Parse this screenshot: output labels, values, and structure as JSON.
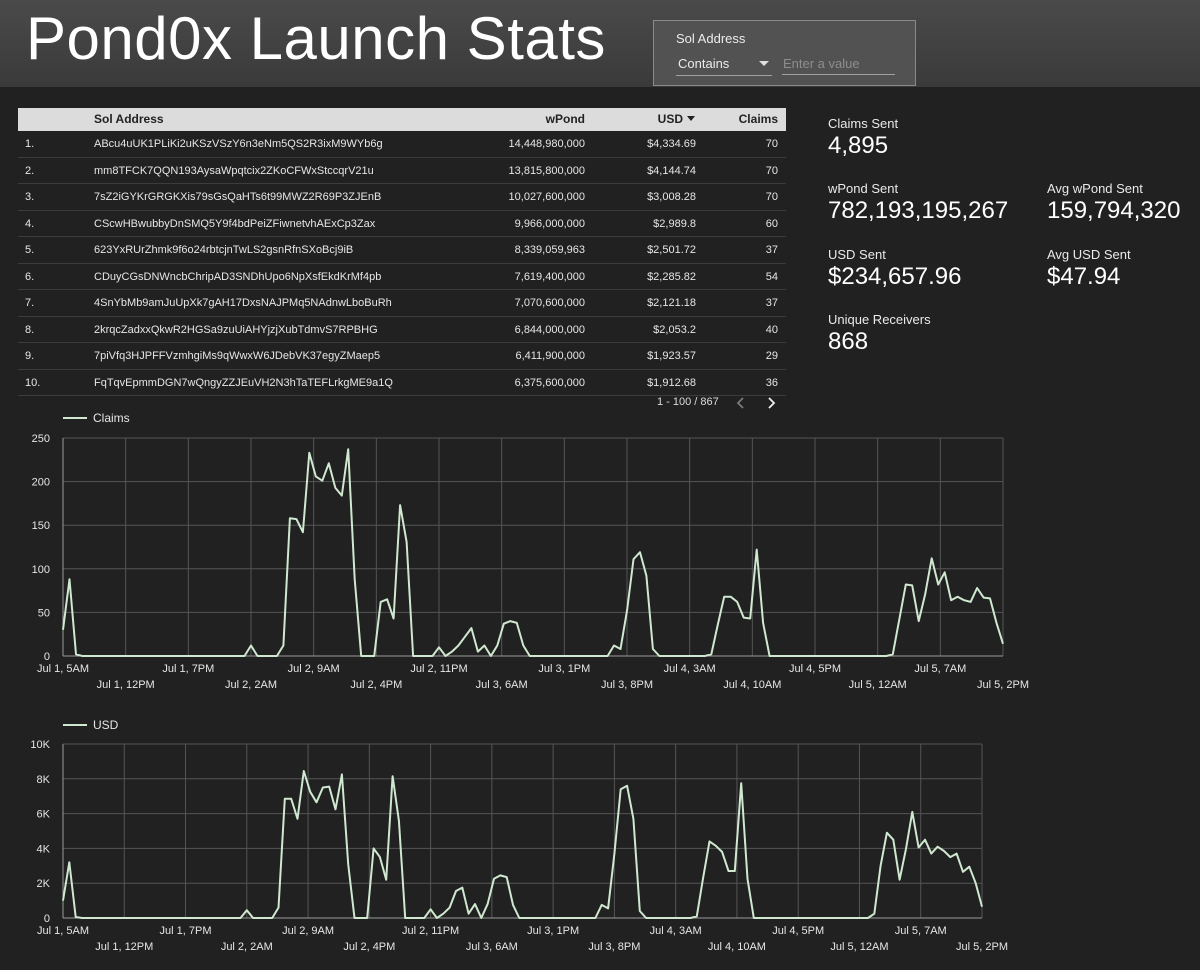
{
  "header": {
    "title": "Pond0x Launch Stats",
    "filter": {
      "label": "Sol Address",
      "operator": "Contains",
      "placeholder": "Enter a value"
    }
  },
  "table": {
    "columns": [
      "Sol Address",
      "wPond",
      "USD",
      "Claims"
    ],
    "sorted_column": "USD",
    "rows": [
      {
        "rank": "1.",
        "address": "ABcu4uUK1PLiKi2uKSzVSzY6n3eNm5QS2R3ixM9WYb6g",
        "wpond": "14,448,980,000",
        "usd": "$4,334.69",
        "claims": "70"
      },
      {
        "rank": "2.",
        "address": "mm8TFCK7QQN193AysaWpqtcix2ZKoCFWxStccqrV21u",
        "wpond": "13,815,800,000",
        "usd": "$4,144.74",
        "claims": "70"
      },
      {
        "rank": "3.",
        "address": "7sZ2iGYKrGRGKXis79sGsQaHTs6t99MWZ2R69P3ZJEnB",
        "wpond": "10,027,600,000",
        "usd": "$3,008.28",
        "claims": "70"
      },
      {
        "rank": "4.",
        "address": "CScwHBwubbyDnSMQ5Y9f4bdPeiZFiwnetvhAExCp3Zax",
        "wpond": "9,966,000,000",
        "usd": "$2,989.8",
        "claims": "60"
      },
      {
        "rank": "5.",
        "address": "623YxRUrZhmk9f6o24rbtcjnTwLS2gsnRfnSXoBcj9iB",
        "wpond": "8,339,059,963",
        "usd": "$2,501.72",
        "claims": "37"
      },
      {
        "rank": "6.",
        "address": "CDuyCGsDNWncbChripAD3SNDhUpo6NpXsfEkdKrMf4pb",
        "wpond": "7,619,400,000",
        "usd": "$2,285.82",
        "claims": "54"
      },
      {
        "rank": "7.",
        "address": "4SnYbMb9amJuUpXk7gAH17DxsNAJPMq5NAdnwLboBuRh",
        "wpond": "7,070,600,000",
        "usd": "$2,121.18",
        "claims": "37"
      },
      {
        "rank": "8.",
        "address": "2krqcZadxxQkwR2HGSa9zuUiAHYjzjXubTdmvS7RPBHG",
        "wpond": "6,844,000,000",
        "usd": "$2,053.2",
        "claims": "40"
      },
      {
        "rank": "9.",
        "address": "7piVfq3HJPFFVzmhgiMs9qWwxW6JDebVK37egyZMaep5",
        "wpond": "6,411,900,000",
        "usd": "$1,923.57",
        "claims": "29"
      },
      {
        "rank": "10.",
        "address": "FqTqvEpmmDGN7wQngyZZJEuVH2N3hTaTEFLrkgME9a1Q",
        "wpond": "6,375,600,000",
        "usd": "$1,912.68",
        "claims": "36"
      }
    ],
    "pagination": "1 - 100 / 867",
    "prev_icon": "chevron-left-icon",
    "next_icon": "chevron-right-icon"
  },
  "kpis": {
    "claims_sent": {
      "label": "Claims Sent",
      "value": "4,895"
    },
    "wpond_sent": {
      "label": "wPond Sent",
      "value": "782,193,195,267"
    },
    "avg_wpond_sent": {
      "label": "Avg wPond Sent",
      "value": "159,794,320"
    },
    "usd_sent": {
      "label": "USD Sent",
      "value": "$234,657.96"
    },
    "avg_usd_sent": {
      "label": "Avg USD Sent",
      "value": "$47.94"
    },
    "unique_receivers": {
      "label": "Unique Receivers",
      "value": "868"
    }
  },
  "colors": {
    "background": "#212121",
    "header": "#444444",
    "line": "#cfe8cf",
    "grid": "#555555"
  },
  "chart_data": [
    {
      "type": "line",
      "series": [
        {
          "name": "Claims",
          "values": [
            30,
            88,
            2,
            0,
            0,
            0,
            0,
            0,
            0,
            0,
            0,
            0,
            0,
            0,
            0,
            0,
            0,
            0,
            0,
            0,
            0,
            0,
            0,
            0,
            0,
            0,
            0,
            0,
            0,
            12,
            0,
            0,
            0,
            0,
            12,
            158,
            157,
            142,
            233,
            206,
            201,
            221,
            193,
            184,
            237,
            88,
            0,
            0,
            0,
            62,
            65,
            43,
            173,
            131,
            0,
            0,
            0,
            0,
            10,
            0,
            5,
            12,
            22,
            32,
            5,
            12,
            0,
            12,
            37,
            40,
            38,
            12,
            0,
            0,
            0,
            0,
            0,
            0,
            0,
            0,
            0,
            0,
            0,
            0,
            0,
            12,
            8,
            52,
            111,
            119,
            92,
            8,
            0,
            0,
            0,
            0,
            0,
            0,
            0,
            0,
            2,
            36,
            68,
            68,
            62,
            44,
            43,
            122,
            38,
            0,
            0,
            0,
            0,
            0,
            0,
            0,
            0,
            0,
            0,
            0,
            0,
            0,
            0,
            0,
            0,
            0,
            0,
            0,
            2,
            42,
            82,
            81,
            40,
            71,
            112,
            82,
            96,
            64,
            68,
            64,
            62,
            78,
            67,
            66,
            38,
            14
          ]
        }
      ],
      "x_ticks_top": [
        "Jul 1, 5AM",
        "Jul 1, 7PM",
        "Jul 2, 9AM",
        "Jul 2, 11PM",
        "Jul 3, 1PM",
        "Jul 4, 3AM",
        "Jul 4, 5PM",
        "Jul 5, 7AM"
      ],
      "x_ticks_bottom": [
        "Jul 1, 12PM",
        "Jul 2, 2AM",
        "Jul 2, 4PM",
        "Jul 3, 6AM",
        "Jul 3, 8PM",
        "Jul 4, 10AM",
        "Jul 5, 12AM",
        "Jul 5, 2PM"
      ],
      "y_ticks": [
        "0",
        "50",
        "100",
        "150",
        "200",
        "250"
      ],
      "ylim": [
        0,
        250
      ],
      "grid": true,
      "legend": "top-left"
    },
    {
      "type": "line",
      "series": [
        {
          "name": "USD",
          "values": [
            1000,
            3200,
            60,
            0,
            0,
            0,
            0,
            0,
            0,
            0,
            0,
            0,
            0,
            0,
            0,
            0,
            0,
            0,
            0,
            0,
            0,
            0,
            0,
            0,
            0,
            0,
            0,
            0,
            0,
            450,
            0,
            0,
            0,
            0,
            600,
            6850,
            6850,
            5700,
            8450,
            7250,
            6650,
            7500,
            7550,
            6250,
            8250,
            3100,
            0,
            0,
            0,
            4000,
            3500,
            2200,
            8150,
            5600,
            0,
            0,
            0,
            0,
            500,
            0,
            250,
            600,
            1550,
            1750,
            250,
            800,
            0,
            800,
            2250,
            2450,
            2350,
            750,
            0,
            0,
            0,
            0,
            0,
            0,
            0,
            0,
            0,
            0,
            0,
            0,
            0,
            750,
            550,
            3700,
            7400,
            7600,
            5700,
            400,
            0,
            0,
            0,
            0,
            0,
            0,
            0,
            0,
            100,
            2300,
            4400,
            4150,
            3800,
            2700,
            2700,
            7750,
            2250,
            0,
            0,
            0,
            0,
            0,
            0,
            0,
            0,
            0,
            0,
            0,
            0,
            0,
            0,
            0,
            0,
            0,
            0,
            0,
            250,
            3000,
            4900,
            4500,
            2200,
            3950,
            6100,
            4050,
            4500,
            3700,
            4100,
            3850,
            3500,
            3700,
            2650,
            2950,
            2000,
            650
          ]
        }
      ],
      "x_ticks_top": [
        "Jul 1, 5AM",
        "Jul 1, 7PM",
        "Jul 2, 9AM",
        "Jul 2, 11PM",
        "Jul 3, 1PM",
        "Jul 4, 3AM",
        "Jul 4, 5PM",
        "Jul 5, 7AM"
      ],
      "x_ticks_bottom": [
        "Jul 1, 12PM",
        "Jul 2, 2AM",
        "Jul 2, 4PM",
        "Jul 3, 6AM",
        "Jul 3, 8PM",
        "Jul 4, 10AM",
        "Jul 5, 12AM",
        "Jul 5, 2PM"
      ],
      "y_ticks": [
        "0",
        "2K",
        "4K",
        "6K",
        "8K",
        "10K"
      ],
      "ylim": [
        0,
        10000
      ],
      "grid": true,
      "legend": "top-left"
    }
  ]
}
